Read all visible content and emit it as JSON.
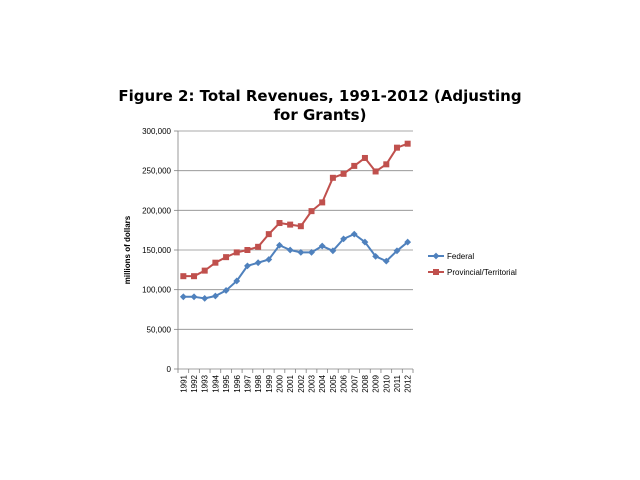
{
  "chart_data": {
    "type": "line",
    "title_lines": [
      "Figure 2: Total Revenues, 1991-2012 (Adjusting",
      "for Grants)"
    ],
    "ylabel": "millions of dollars",
    "xlabel": "",
    "ylim": [
      0,
      300000
    ],
    "yticks": [
      0,
      50000,
      100000,
      150000,
      200000,
      250000,
      300000
    ],
    "ytick_labels": [
      "0",
      "50,000",
      "100,000",
      "150,000",
      "200,000",
      "250,000",
      "300,000"
    ],
    "grid": true,
    "legend_position": "right",
    "categories": [
      "1991",
      "1992",
      "1993",
      "1994",
      "1995",
      "1996",
      "1997",
      "1998",
      "1999",
      "2000",
      "2001",
      "2002",
      "2003",
      "2004",
      "2005",
      "2006",
      "2007",
      "2008",
      "2009",
      "2010",
      "2011",
      "2012"
    ],
    "series": [
      {
        "name": "Federal",
        "color": "#4f81bd",
        "marker": "diamond",
        "values": [
          91000,
          91000,
          89000,
          92000,
          99000,
          111000,
          130000,
          134000,
          138000,
          156000,
          150000,
          147000,
          147000,
          155000,
          149000,
          164000,
          170000,
          160000,
          142000,
          136000,
          149000,
          160000
        ]
      },
      {
        "name": "Provincial/Territorial",
        "color": "#c0504d",
        "marker": "square",
        "values": [
          117000,
          117000,
          124000,
          134000,
          141000,
          147000,
          150000,
          154000,
          170000,
          184000,
          182000,
          180000,
          199000,
          210000,
          241000,
          246000,
          256000,
          266000,
          249000,
          258000,
          279000,
          284000
        ]
      }
    ]
  }
}
